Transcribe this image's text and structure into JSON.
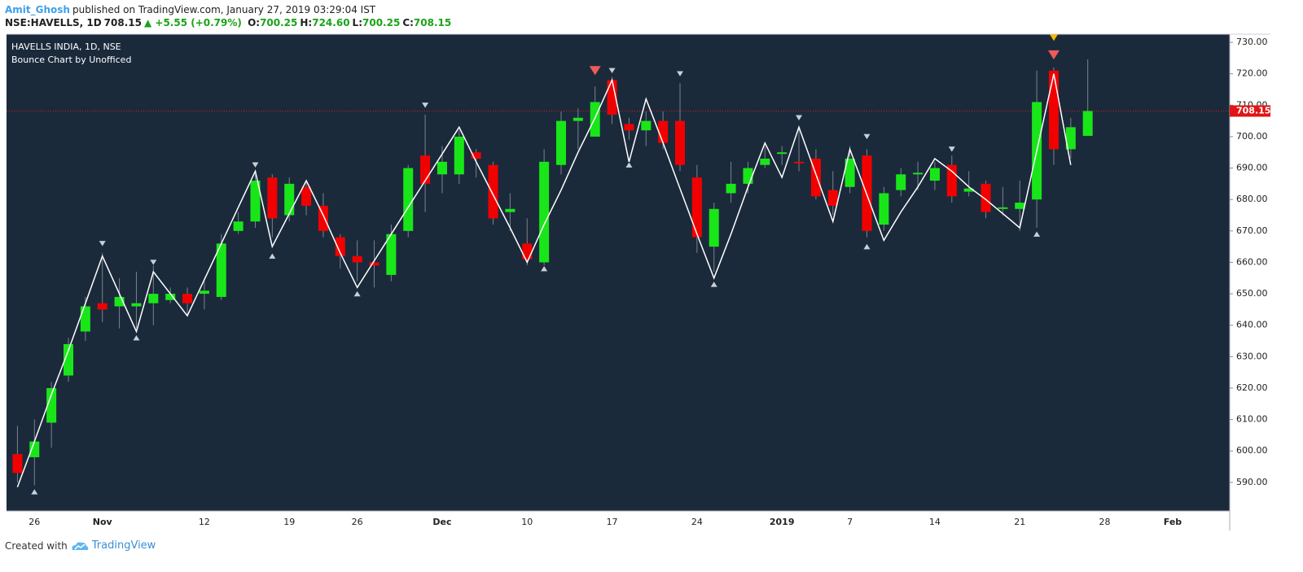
{
  "header": {
    "author": "Amit_Ghosh",
    "published": "published on TradingView.com, January 27, 2019 03:29:04 IST",
    "symbol": "NSE:HAVELLS, 1D",
    "price": "708.15",
    "change": "▲ +5.55 (+0.79%)",
    "ohlc": [
      {
        "label": "O:",
        "value": "700.25"
      },
      {
        "label": "H:",
        "value": "724.60"
      },
      {
        "label": "L:",
        "value": "700.25"
      },
      {
        "label": "C:",
        "value": "708.15"
      }
    ]
  },
  "chart_data": {
    "type": "candlestick",
    "title": "HAVELLS INDIA, 1D, NSE",
    "subtitle": "Bounce Chart by Unofficed",
    "background": "#1b2a3b",
    "up_color": "#19e619",
    "down_color": "#f20000",
    "wick_color": "#7a828c",
    "categories": [
      null,
      "26",
      null,
      null,
      null,
      "Nov",
      null,
      null,
      null,
      null,
      null,
      "12",
      null,
      null,
      null,
      null,
      "19",
      null,
      null,
      null,
      "26",
      null,
      null,
      null,
      null,
      "Dec",
      null,
      null,
      null,
      null,
      "10",
      null,
      null,
      null,
      null,
      "17",
      null,
      null,
      null,
      null,
      "24",
      null,
      null,
      null,
      null,
      "2019",
      null,
      null,
      null,
      "7",
      null,
      null,
      null,
      null,
      "14",
      null,
      null,
      null,
      null,
      "21",
      null,
      null,
      null,
      null,
      "28",
      null,
      null,
      null,
      "Feb",
      null,
      null,
      null
    ],
    "open": [
      599,
      598,
      609,
      624,
      638,
      647,
      646,
      646,
      647,
      648,
      650,
      650,
      649,
      670,
      673,
      687,
      675,
      684,
      678,
      668,
      662,
      660,
      656,
      670,
      694,
      688,
      688,
      695,
      691,
      676,
      666,
      660,
      691,
      705,
      700,
      718,
      704,
      702,
      705,
      705,
      687,
      665,
      682,
      685,
      691,
      694.5,
      692,
      693,
      683,
      684,
      694,
      672,
      683,
      688,
      686,
      691,
      682.5,
      685,
      677,
      677,
      680,
      721,
      696,
      700.25,
      null,
      null,
      null,
      null,
      null,
      null,
      null,
      null
    ],
    "high": [
      608,
      610,
      622,
      636,
      649,
      663,
      655,
      657,
      659,
      652,
      652,
      655,
      669,
      676,
      688,
      688,
      687,
      686,
      682,
      669,
      667,
      667,
      672,
      691,
      707,
      697,
      702,
      696,
      692,
      682,
      674,
      696,
      708,
      709,
      716,
      719,
      706,
      708,
      708,
      717,
      691,
      679,
      692,
      692,
      697,
      697,
      703,
      696,
      689,
      697,
      696,
      684,
      690,
      692,
      692,
      694,
      689,
      686,
      684,
      686,
      721,
      722,
      706,
      724.6,
      null,
      null,
      null,
      null,
      null,
      null,
      null,
      null
    ],
    "low": [
      590,
      589,
      601,
      622,
      635,
      641,
      639,
      639,
      640,
      647,
      643,
      645,
      648,
      669,
      671,
      668,
      673,
      675,
      668,
      658,
      654,
      652,
      654,
      668,
      676,
      682,
      685,
      687,
      672,
      670,
      659,
      659,
      688,
      696,
      700,
      704,
      699,
      697,
      696,
      689,
      663,
      657,
      679,
      682,
      690,
      691,
      689,
      680,
      675,
      682,
      668,
      670,
      681,
      683,
      683,
      679,
      681,
      674,
      675,
      670,
      671,
      691,
      693,
      700.25,
      null,
      null,
      null,
      null,
      null,
      null,
      null,
      null
    ],
    "close": [
      593,
      603,
      620,
      634,
      646,
      645,
      649,
      647,
      650,
      650,
      647,
      651,
      666,
      673,
      686,
      674,
      685,
      678,
      670,
      662,
      660,
      659,
      669,
      690,
      685,
      692,
      700,
      693,
      674,
      677,
      661,
      692,
      705,
      706,
      711,
      707,
      702,
      705,
      698,
      691,
      668,
      677,
      685,
      690,
      693,
      695,
      691.5,
      681,
      678,
      693,
      670,
      682,
      688,
      688.5,
      690,
      681,
      683.5,
      676,
      677.5,
      679,
      711,
      696,
      703,
      708.15,
      null,
      null,
      null,
      null,
      null,
      null,
      null,
      null
    ],
    "zigzag": {
      "color": "#ffffff",
      "values": [
        588.5,
        603,
        618,
        632,
        647,
        662,
        650,
        638,
        657,
        650,
        643,
        654.5,
        666,
        677.5,
        689,
        665,
        675.5,
        686,
        675,
        663,
        652,
        660.5,
        669,
        677.5,
        686,
        694.5,
        703,
        692,
        681.5,
        671,
        660,
        672,
        683,
        695,
        706,
        718,
        692,
        712,
        698,
        683.5,
        669,
        655,
        669,
        684,
        698,
        687,
        703,
        688,
        673,
        696,
        681.5,
        667,
        676,
        684,
        693,
        689,
        684,
        680,
        675.5,
        671,
        695.5,
        720,
        691,
        null,
        null,
        null,
        null,
        null,
        null,
        null,
        null,
        null
      ]
    },
    "pivot_high": {
      "color": "#c8d0d8",
      "values": [
        null,
        null,
        null,
        null,
        null,
        666,
        null,
        null,
        660,
        null,
        null,
        null,
        null,
        null,
        691,
        null,
        null,
        null,
        null,
        null,
        null,
        null,
        null,
        null,
        710,
        null,
        null,
        null,
        null,
        null,
        null,
        null,
        null,
        null,
        null,
        721,
        null,
        null,
        null,
        720,
        null,
        null,
        null,
        null,
        null,
        null,
        706,
        null,
        null,
        null,
        700,
        null,
        null,
        null,
        null,
        696,
        null,
        null,
        null,
        null,
        null,
        null,
        null,
        null,
        null,
        null,
        null,
        null,
        null,
        null,
        null,
        null
      ]
    },
    "pivot_low": {
      "color": "#c8d0d8",
      "values": [
        null,
        587,
        null,
        null,
        null,
        null,
        null,
        636,
        null,
        null,
        null,
        null,
        null,
        null,
        null,
        662,
        null,
        null,
        null,
        null,
        650,
        null,
        null,
        null,
        null,
        null,
        null,
        null,
        null,
        null,
        null,
        658,
        null,
        null,
        null,
        null,
        691,
        null,
        null,
        null,
        null,
        653,
        null,
        null,
        null,
        null,
        null,
        null,
        null,
        null,
        665,
        null,
        null,
        null,
        null,
        null,
        null,
        null,
        null,
        null,
        669,
        null,
        null,
        null,
        null,
        null,
        null,
        null,
        null,
        null,
        null,
        null
      ]
    },
    "signal": {
      "color": "#ef5a5a",
      "values": [
        null,
        null,
        null,
        null,
        null,
        null,
        null,
        null,
        null,
        null,
        null,
        null,
        null,
        null,
        null,
        null,
        null,
        null,
        null,
        null,
        null,
        null,
        null,
        null,
        null,
        null,
        null,
        null,
        null,
        null,
        null,
        null,
        null,
        null,
        721,
        null,
        null,
        null,
        null,
        null,
        null,
        null,
        null,
        null,
        null,
        null,
        null,
        null,
        null,
        null,
        null,
        null,
        null,
        null,
        null,
        null,
        null,
        null,
        null,
        null,
        null,
        726,
        null,
        null,
        null,
        null,
        null,
        null,
        null,
        null,
        null,
        null
      ]
    },
    "alert": {
      "color": "#f5b800",
      "values": [
        null,
        null,
        null,
        null,
        null,
        null,
        null,
        null,
        null,
        null,
        null,
        null,
        null,
        null,
        null,
        null,
        null,
        null,
        null,
        null,
        null,
        null,
        null,
        null,
        null,
        null,
        null,
        null,
        null,
        null,
        null,
        null,
        null,
        null,
        null,
        null,
        null,
        null,
        null,
        null,
        null,
        null,
        null,
        null,
        null,
        null,
        null,
        null,
        null,
        null,
        null,
        null,
        null,
        null,
        null,
        null,
        null,
        null,
        null,
        null,
        null,
        731.5,
        null,
        null,
        null,
        null,
        null,
        null,
        null,
        null,
        null,
        null
      ]
    },
    "last_price": 708.15,
    "price_line_color": "#e01515",
    "ylim": [
      580.9,
      732.6
    ],
    "yticks": [
      {
        "value": 590,
        "label": "590.00"
      },
      {
        "value": 600,
        "label": "600.00"
      },
      {
        "value": 610,
        "label": "610.00"
      },
      {
        "value": 620,
        "label": "620.00"
      },
      {
        "value": 630,
        "label": "630.00"
      },
      {
        "value": 640,
        "label": "640.00"
      },
      {
        "value": 650,
        "label": "650.00"
      },
      {
        "value": 660,
        "label": "660.00"
      },
      {
        "value": 670,
        "label": "670.00"
      },
      {
        "value": 680,
        "label": "680.00"
      },
      {
        "value": 690,
        "label": "690.00"
      },
      {
        "value": 700,
        "label": "700.00"
      },
      {
        "value": 710,
        "label": "710.00"
      },
      {
        "value": 720,
        "label": "720.00"
      },
      {
        "value": 730,
        "label": "730.00"
      }
    ]
  },
  "footer": {
    "text": "Created with",
    "brand": "TradingView"
  }
}
